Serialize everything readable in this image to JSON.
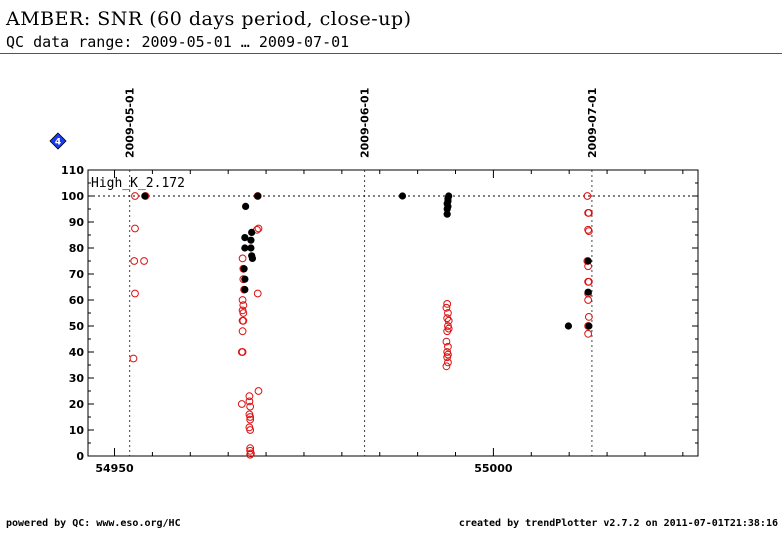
{
  "header": {
    "title": "AMBER: SNR (60 days period, close-up)",
    "subtitle": "QC data range: 2009-05-01 … 2009-07-01"
  },
  "footer": {
    "left": "powered by QC: www.eso.org/HC",
    "right": "created by trendPlotter v2.7.2 on 2011-07-01T21:38:16"
  },
  "badge": {
    "label": "4",
    "color": "#1a3cf0",
    "icon": "diamond-icon"
  },
  "chart_data": {
    "type": "scatter",
    "series_label": "High_K_2.172",
    "xlim": [
      54946.5,
      55027
    ],
    "ylim": [
      0,
      110
    ],
    "x_ticks": [
      {
        "value": 54950,
        "label": "54950"
      },
      {
        "value": 55000,
        "label": "55000"
      }
    ],
    "y_ticks": [
      0,
      10,
      20,
      30,
      40,
      50,
      60,
      70,
      80,
      90,
      100,
      110
    ],
    "reference_line": 100,
    "date_markers": [
      {
        "value": 54952,
        "label": "2009-05-01"
      },
      {
        "value": 54983,
        "label": "2009-06-01"
      },
      {
        "value": 55013,
        "label": "2009-07-01"
      }
    ],
    "colors": {
      "filled": "#000000",
      "open": "#dd1111"
    },
    "filled_points": [
      [
        54954.0,
        100
      ],
      [
        54967.3,
        96
      ],
      [
        54967.2,
        84
      ],
      [
        54967.2,
        80
      ],
      [
        54967.1,
        72
      ],
      [
        54967.2,
        68
      ],
      [
        54967.2,
        64
      ],
      [
        54968.1,
        86
      ],
      [
        54968.0,
        83
      ],
      [
        54968.0,
        80
      ],
      [
        54968.1,
        77
      ],
      [
        54968.2,
        76
      ],
      [
        54968.9,
        100
      ],
      [
        54988.0,
        100
      ],
      [
        54994.1,
        100
      ],
      [
        54994.0,
        99
      ],
      [
        54994.0,
        98
      ],
      [
        54993.9,
        97
      ],
      [
        54994.0,
        96
      ],
      [
        54993.9,
        95
      ],
      [
        54993.9,
        93
      ],
      [
        55009.9,
        50
      ],
      [
        55012.5,
        75
      ],
      [
        55012.5,
        63
      ],
      [
        55012.6,
        50
      ]
    ],
    "open_points": [
      [
        54952.7,
        100
      ],
      [
        54952.7,
        87.5
      ],
      [
        54952.6,
        75
      ],
      [
        54952.7,
        62.5
      ],
      [
        54952.5,
        37.5
      ],
      [
        54953.9,
        75
      ],
      [
        54954.1,
        100
      ],
      [
        54966.9,
        76
      ],
      [
        54967.0,
        72
      ],
      [
        54967.0,
        68
      ],
      [
        54967.1,
        64
      ],
      [
        54966.9,
        60
      ],
      [
        54967.0,
        58
      ],
      [
        54966.9,
        56
      ],
      [
        54967.0,
        55
      ],
      [
        54967.0,
        52
      ],
      [
        54966.9,
        52
      ],
      [
        54966.9,
        48
      ],
      [
        54966.8,
        40
      ],
      [
        54966.9,
        40
      ],
      [
        54966.8,
        20
      ],
      [
        54967.8,
        23
      ],
      [
        54967.8,
        21
      ],
      [
        54967.9,
        19
      ],
      [
        54967.8,
        16
      ],
      [
        54967.9,
        15
      ],
      [
        54967.9,
        14
      ],
      [
        54967.8,
        11
      ],
      [
        54967.9,
        10
      ],
      [
        54967.9,
        3
      ],
      [
        54967.9,
        2
      ],
      [
        54968.0,
        1
      ],
      [
        54967.9,
        0.5
      ],
      [
        54968.9,
        100
      ],
      [
        54969.0,
        87.5
      ],
      [
        54968.8,
        87
      ],
      [
        54968.9,
        62.5
      ],
      [
        54969.0,
        25
      ],
      [
        54993.9,
        58.5
      ],
      [
        54993.8,
        57
      ],
      [
        54994.0,
        55
      ],
      [
        54993.9,
        53
      ],
      [
        54994.1,
        52
      ],
      [
        54994.0,
        50
      ],
      [
        54994.1,
        49
      ],
      [
        54993.9,
        48
      ],
      [
        54993.8,
        44
      ],
      [
        54994.0,
        42
      ],
      [
        54993.9,
        40
      ],
      [
        54994.0,
        39
      ],
      [
        54993.9,
        38
      ],
      [
        54994.0,
        36
      ],
      [
        54993.8,
        34.5
      ],
      [
        55012.4,
        100
      ],
      [
        55012.5,
        93.5
      ],
      [
        55012.6,
        93.5
      ],
      [
        55012.5,
        87
      ],
      [
        55012.6,
        86.5
      ],
      [
        55012.4,
        75
      ],
      [
        55012.5,
        73
      ],
      [
        55012.5,
        67
      ],
      [
        55012.6,
        67
      ],
      [
        55012.5,
        62.5
      ],
      [
        55012.5,
        60
      ],
      [
        55012.6,
        53.5
      ],
      [
        55012.5,
        50
      ],
      [
        55012.5,
        47
      ]
    ]
  }
}
